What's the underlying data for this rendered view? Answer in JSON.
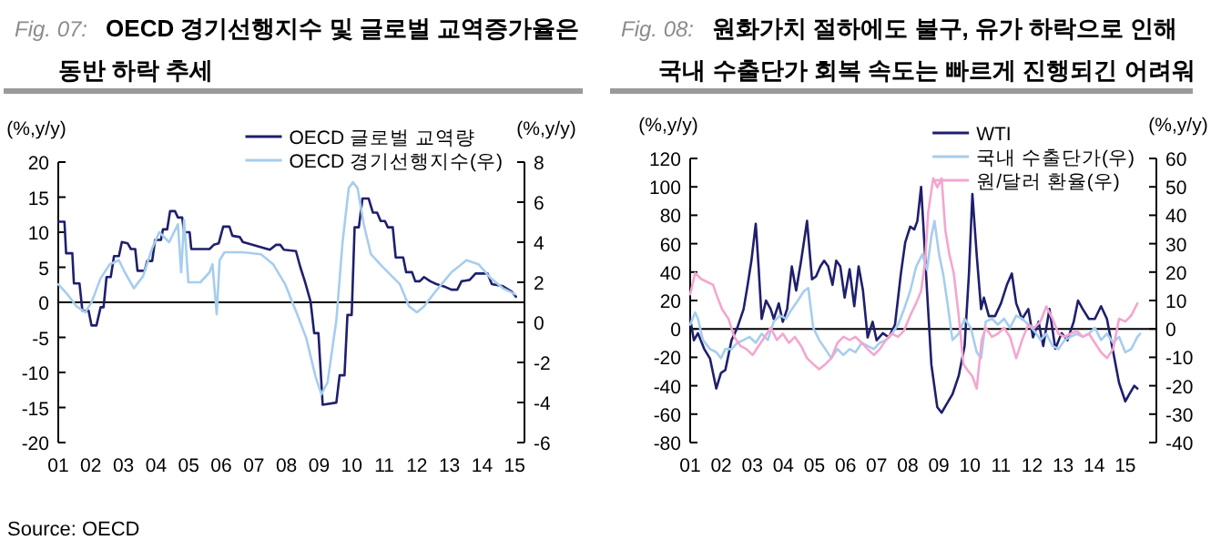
{
  "chart_data": [
    {
      "type": "line",
      "subtitle": "Fig. 07:",
      "title": "OECD 경기선행지수 및 글로벌 교역증가율은 동반 하락 추세",
      "ylabel": "(%,y/y)",
      "y2label": "(%,y/y)",
      "xlim": [
        2001,
        2015.3
      ],
      "xticks": [
        {
          "value": 2001,
          "label": "01"
        },
        {
          "value": 2002,
          "label": "02"
        },
        {
          "value": 2003,
          "label": "03"
        },
        {
          "value": 2004,
          "label": "04"
        },
        {
          "value": 2005,
          "label": "05"
        },
        {
          "value": 2006,
          "label": "06"
        },
        {
          "value": 2007,
          "label": "07"
        },
        {
          "value": 2008,
          "label": "08"
        },
        {
          "value": 2009,
          "label": "09"
        },
        {
          "value": 2010,
          "label": "10"
        },
        {
          "value": 2011,
          "label": "11"
        },
        {
          "value": 2012,
          "label": "12"
        },
        {
          "value": 2013,
          "label": "13"
        },
        {
          "value": 2014,
          "label": "14"
        },
        {
          "value": 2015,
          "label": "15"
        }
      ],
      "ylim": [
        -20,
        20
      ],
      "yticks": [
        -20,
        -15,
        -10,
        -5,
        0,
        5,
        10,
        15,
        20
      ],
      "y2lim": [
        -6,
        8
      ],
      "y2ticks": [
        -6,
        -4,
        -2,
        0,
        2,
        4,
        6,
        8
      ],
      "legend": "top right",
      "ref_lines": [
        {
          "axis": "y",
          "value": 0,
          "color": "#000000"
        }
      ],
      "annotations": [
        "Source: OECD"
      ],
      "series": [
        {
          "name": "OECD 글로벌 교역량",
          "color": "#1f1f6e",
          "x": [
            2001.0,
            2001.19,
            2001.24,
            2001.43,
            2001.48,
            2001.65,
            2001.74,
            2001.93,
            2002.02,
            2002.17,
            2002.3,
            2002.39,
            2002.48,
            2002.61,
            2002.71,
            2002.86,
            2002.95,
            2003.13,
            2003.23,
            2003.36,
            2003.43,
            2003.65,
            2003.73,
            2003.88,
            2003.97,
            2004.15,
            2004.21,
            2004.34,
            2004.43,
            2004.58,
            2004.67,
            2004.8,
            2004.86,
            2005.03,
            2005.08,
            2005.64,
            2005.77,
            2005.92,
            2006.06,
            2006.25,
            2006.34,
            2006.57,
            2006.66,
            2007.49,
            2007.68,
            2007.81,
            2007.92,
            2008.29,
            2008.42,
            2008.57,
            2008.74,
            2008.85,
            2008.98,
            2009.11,
            2009.53,
            2009.63,
            2009.78,
            2009.87,
            2010.0,
            2010.09,
            2010.22,
            2010.33,
            2010.52,
            2010.65,
            2010.78,
            2010.89,
            2011.02,
            2011.11,
            2011.26,
            2011.35,
            2011.58,
            2011.67,
            2011.85,
            2011.95,
            2012.09,
            2012.22,
            2012.41,
            2012.6,
            2012.87,
            2013.06,
            2013.24,
            2013.37,
            2013.62,
            2013.8,
            2014.17,
            2014.3,
            2014.64,
            2014.91,
            2015.04
          ],
          "values": [
            11.5,
            11.5,
            7,
            7,
            2.7,
            2.7,
            -1.2,
            -1.2,
            -3.3,
            -3.3,
            -0.7,
            -0.7,
            3.6,
            3.6,
            6.6,
            6.6,
            8.6,
            8.4,
            7.6,
            7.6,
            4.5,
            4.5,
            5.9,
            5.9,
            8.9,
            8.9,
            10.4,
            10.4,
            13,
            13,
            12.1,
            12.1,
            10,
            10,
            7.6,
            7.6,
            8.2,
            8.4,
            10.8,
            10.8,
            9.5,
            9.3,
            8.6,
            7.5,
            8.2,
            8.2,
            7.5,
            7.3,
            5.1,
            2.9,
            0.1,
            -4.4,
            -4.4,
            -14.6,
            -14.3,
            -10.4,
            -10.4,
            -1.8,
            -1.8,
            10.7,
            10.7,
            14.8,
            14.8,
            12.8,
            12.8,
            11.6,
            11.6,
            10.7,
            10.7,
            6.4,
            6.4,
            4.3,
            4.3,
            3,
            3,
            3.6,
            3,
            2.6,
            2.2,
            1.8,
            1.8,
            3,
            3.2,
            4.1,
            4.1,
            2.6,
            2.3,
            1.5,
            0.8
          ]
        },
        {
          "name": "OECD 경기선행지수(우)",
          "color": "#a6cdee",
          "axis": "y2",
          "x": [
            2001.0,
            2001.28,
            2001.56,
            2001.83,
            2002.02,
            2002.3,
            2002.58,
            2002.86,
            2003.04,
            2003.32,
            2003.6,
            2003.88,
            2004.1,
            2004.4,
            2004.67,
            2004.77,
            2004.86,
            2004.99,
            2005.36,
            2005.64,
            2005.73,
            2005.86,
            2005.95,
            2006.1,
            2006.66,
            2007.22,
            2007.59,
            2007.96,
            2008.33,
            2008.61,
            2008.89,
            2009.07,
            2009.26,
            2009.53,
            2009.72,
            2009.91,
            2010.04,
            2010.18,
            2010.37,
            2010.59,
            2010.93,
            2011.48,
            2011.76,
            2012.0,
            2012.22,
            2012.6,
            2013.06,
            2013.52,
            2013.89,
            2014.27,
            2014.64,
            2015.01
          ],
          "values": [
            1.9,
            1.4,
            0.8,
            0.5,
            1.0,
            2.2,
            2.9,
            3.1,
            2.5,
            1.7,
            2.3,
            3.7,
            4.5,
            4.0,
            4.9,
            2.5,
            5.1,
            2.0,
            2.0,
            2.5,
            2.9,
            0.4,
            3.1,
            3.5,
            3.5,
            3.4,
            2.9,
            1.9,
            0.4,
            -0.8,
            -2.7,
            -3.6,
            -3.0,
            0.1,
            4.0,
            6.7,
            7.0,
            6.7,
            4.9,
            3.4,
            2.8,
            1.9,
            0.8,
            0.5,
            0.8,
            1.6,
            2.5,
            3.1,
            2.9,
            2.2,
            1.7,
            1.4
          ]
        }
      ]
    },
    {
      "type": "line",
      "subtitle": "Fig. 08:",
      "title": "원화가치 절하에도 불구, 유가 하락으로 인해 국내 수출단가 회복 속도는 빠르게 진행되긴 어려워",
      "ylabel": "(%,y/y)",
      "y2label": "(%,y/y)",
      "xlim": [
        2001,
        2016
      ],
      "xticks": [
        {
          "value": 2001,
          "label": "01"
        },
        {
          "value": 2002,
          "label": "02"
        },
        {
          "value": 2003,
          "label": "03"
        },
        {
          "value": 2004,
          "label": "04"
        },
        {
          "value": 2005,
          "label": "05"
        },
        {
          "value": 2006,
          "label": "06"
        },
        {
          "value": 2007,
          "label": "07"
        },
        {
          "value": 2008,
          "label": "08"
        },
        {
          "value": 2009,
          "label": "09"
        },
        {
          "value": 2010,
          "label": "10"
        },
        {
          "value": 2011,
          "label": "11"
        },
        {
          "value": 2012,
          "label": "12"
        },
        {
          "value": 2013,
          "label": "13"
        },
        {
          "value": 2014,
          "label": "14"
        },
        {
          "value": 2015,
          "label": "15"
        }
      ],
      "ylim": [
        -80,
        120
      ],
      "yticks": [
        -80,
        -60,
        -40,
        -20,
        0,
        20,
        40,
        60,
        80,
        100,
        120
      ],
      "y2lim": [
        -40,
        60
      ],
      "y2ticks": [
        -40,
        -30,
        -20,
        -10,
        0,
        10,
        20,
        30,
        40,
        50,
        60
      ],
      "legend": "top right",
      "ref_lines": [
        {
          "axis": "y",
          "value": 0,
          "color": "#000000"
        }
      ],
      "series": [
        {
          "name": "WTI",
          "color": "#1f1f6e",
          "x": [
            2001.0,
            2001.12,
            2001.25,
            2001.45,
            2001.64,
            2001.84,
            2001.99,
            2002.13,
            2002.33,
            2002.52,
            2002.72,
            2002.85,
            2002.97,
            2003.11,
            2003.2,
            2003.3,
            2003.44,
            2003.59,
            2003.69,
            2003.85,
            2003.98,
            2004.12,
            2004.27,
            2004.41,
            2004.57,
            2004.76,
            2004.92,
            2005.05,
            2005.19,
            2005.31,
            2005.44,
            2005.58,
            2005.7,
            2005.83,
            2005.97,
            2006.13,
            2006.28,
            2006.42,
            2006.56,
            2006.71,
            2006.87,
            2007.0,
            2007.2,
            2007.39,
            2007.59,
            2007.78,
            2007.92,
            2008.08,
            2008.21,
            2008.31,
            2008.43,
            2008.5,
            2008.62,
            2008.76,
            2008.95,
            2009.09,
            2009.25,
            2009.44,
            2009.64,
            2009.83,
            2009.97,
            2010.08,
            2010.22,
            2010.36,
            2010.45,
            2010.61,
            2010.81,
            2011.0,
            2011.19,
            2011.35,
            2011.49,
            2011.68,
            2011.88,
            2012.03,
            2012.21,
            2012.36,
            2012.56,
            2012.75,
            2012.95,
            2013.14,
            2013.34,
            2013.48,
            2013.63,
            2013.83,
            2014.02,
            2014.22,
            2014.41,
            2014.61,
            2014.8,
            2015.0,
            2015.13,
            2015.29,
            2015.39
          ],
          "values": [
            7,
            -8,
            -3,
            -14,
            -21,
            -42,
            -31,
            -29,
            -8,
            1,
            14,
            31,
            48,
            74,
            44,
            7,
            20,
            14,
            7,
            18,
            5,
            14,
            44,
            27,
            48,
            76,
            35,
            37,
            44,
            48,
            44,
            31,
            48,
            44,
            22,
            42,
            16,
            44,
            27,
            -6,
            5,
            -8,
            -3,
            -6,
            3,
            39,
            61,
            72,
            70,
            76,
            100,
            74,
            27,
            -25,
            -55,
            -59,
            -53,
            -46,
            -33,
            -12,
            39,
            95,
            52,
            14,
            22,
            9,
            9,
            18,
            31,
            39,
            18,
            7,
            14,
            -6,
            5,
            -12,
            14,
            -14,
            -3,
            -8,
            5,
            20,
            14,
            7,
            7,
            16,
            7,
            -16,
            -38,
            -51,
            -46,
            -40,
            -42
          ]
        },
        {
          "name": "국내 수출단가(우)",
          "color": "#a6cdee",
          "axis": "y2",
          "x": [
            2001.0,
            2001.16,
            2001.25,
            2001.41,
            2001.64,
            2001.84,
            2001.99,
            2002.13,
            2002.33,
            2002.52,
            2002.72,
            2002.91,
            2003.11,
            2003.3,
            2003.5,
            2003.69,
            2003.89,
            2004.08,
            2004.27,
            2004.47,
            2004.66,
            2004.8,
            2004.96,
            2005.15,
            2005.35,
            2005.54,
            2005.74,
            2005.93,
            2006.13,
            2006.32,
            2006.52,
            2006.71,
            2006.91,
            2007.1,
            2007.3,
            2007.49,
            2007.69,
            2007.88,
            2008.08,
            2008.27,
            2008.47,
            2008.62,
            2008.76,
            2008.86,
            2009.01,
            2009.15,
            2009.28,
            2009.44,
            2009.64,
            2009.83,
            2010.03,
            2010.22,
            2010.36,
            2010.51,
            2010.71,
            2010.9,
            2011.1,
            2011.29,
            2011.49,
            2011.68,
            2011.88,
            2012.07,
            2012.27,
            2012.46,
            2012.66,
            2012.85,
            2013.05,
            2013.24,
            2013.44,
            2013.63,
            2013.83,
            2014.02,
            2014.22,
            2014.41,
            2014.61,
            2014.8,
            2015.0,
            2015.19,
            2015.39,
            2015.48
          ],
          "values": [
            1.5,
            5.8,
            3.6,
            -3.9,
            -7.1,
            -8.2,
            -10.3,
            -7.1,
            -7.1,
            -4.9,
            -3.9,
            -2.8,
            -4.9,
            -1.7,
            -3.9,
            2.6,
            4.7,
            3.6,
            6.9,
            10.1,
            13.3,
            14.4,
            0.4,
            -3.9,
            -7.1,
            -10.3,
            -7.1,
            -9.2,
            -7.1,
            -8.2,
            -4.9,
            -6.0,
            -7.1,
            -4.9,
            -3.9,
            -1.7,
            1.5,
            6.9,
            13.3,
            21.9,
            26.2,
            20.8,
            32.6,
            38.0,
            26.2,
            18.7,
            9.0,
            -3.9,
            -1.7,
            3.6,
            0.4,
            -8.2,
            -10.3,
            2.6,
            3.6,
            1.5,
            3.6,
            0.4,
            4.7,
            3.6,
            1.5,
            -0.6,
            -3.9,
            -1.7,
            -6.0,
            -7.1,
            -3.9,
            -2.8,
            -1.7,
            -2.8,
            -1.7,
            0.4,
            -3.9,
            -1.7,
            -4.9,
            -2.8,
            -8.2,
            -7.1,
            -2.8,
            -1.7
          ]
        },
        {
          "name": "원/달러 환율(우)",
          "color": "#f4a6cf",
          "axis": "y2",
          "x": [
            2001.0,
            2001.16,
            2001.35,
            2001.55,
            2001.74,
            2001.84,
            2002.03,
            2002.23,
            2002.42,
            2002.62,
            2002.81,
            2003.01,
            2003.2,
            2003.4,
            2003.59,
            2003.79,
            2003.98,
            2004.18,
            2004.37,
            2004.57,
            2004.76,
            2004.96,
            2005.15,
            2005.35,
            2005.54,
            2005.74,
            2005.93,
            2006.13,
            2006.32,
            2006.52,
            2006.71,
            2006.91,
            2007.1,
            2007.3,
            2007.49,
            2007.69,
            2007.88,
            2008.08,
            2008.27,
            2008.43,
            2008.56,
            2008.66,
            2008.82,
            2008.95,
            2009.09,
            2009.21,
            2009.34,
            2009.48,
            2009.64,
            2009.79,
            2009.93,
            2010.08,
            2010.22,
            2010.38,
            2010.51,
            2010.71,
            2010.9,
            2011.1,
            2011.29,
            2011.49,
            2011.68,
            2011.88,
            2012.07,
            2012.27,
            2012.46,
            2012.66,
            2012.85,
            2013.05,
            2013.24,
            2013.44,
            2013.63,
            2013.83,
            2014.02,
            2014.22,
            2014.41,
            2014.61,
            2014.8,
            2015.0,
            2015.19,
            2015.39
          ],
          "values": [
            12.2,
            19.7,
            17.6,
            16.5,
            15.5,
            12.2,
            6.9,
            3.6,
            -2.8,
            -6.0,
            -7.1,
            -9.2,
            -6.0,
            -2.8,
            0.4,
            -3.9,
            -1.7,
            -4.9,
            -2.8,
            -6.0,
            -10.3,
            -12.4,
            -14.2,
            -12.4,
            -10.3,
            -4.9,
            -2.8,
            -3.9,
            -2.8,
            -4.9,
            -7.1,
            -9.2,
            -7.1,
            -3.9,
            -1.7,
            -2.8,
            -0.6,
            4.7,
            9.0,
            13.3,
            24.0,
            41.2,
            53.0,
            49.8,
            53.0,
            34.8,
            26.2,
            19.7,
            4.7,
            -12.4,
            -14.6,
            -16.7,
            -21.0,
            -3.9,
            0.4,
            -2.8,
            -1.7,
            0.4,
            -2.8,
            -10.3,
            -3.9,
            1.5,
            0.4,
            2.6,
            7.9,
            3.6,
            -1.7,
            -2.8,
            -1.7,
            -0.6,
            -2.8,
            -1.7,
            -4.9,
            -8.2,
            -10.3,
            -7.1,
            3.6,
            2.6,
            4.7,
            9.0
          ]
        }
      ]
    }
  ]
}
